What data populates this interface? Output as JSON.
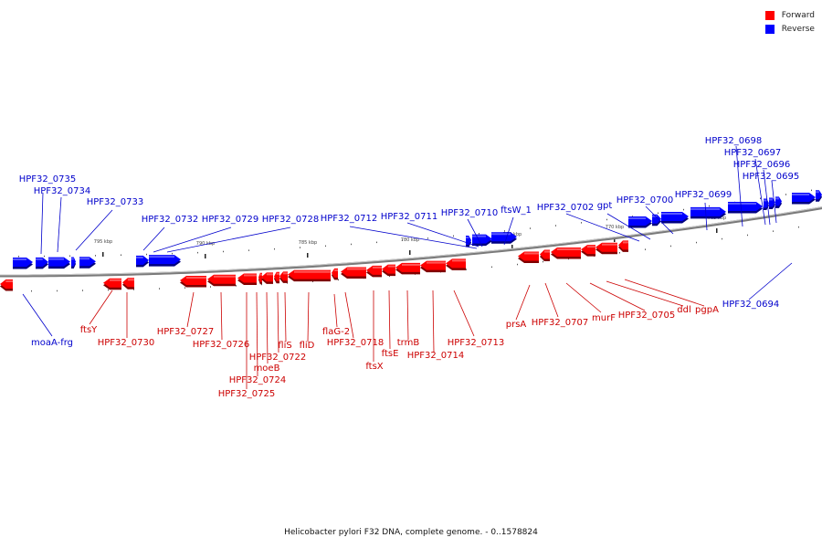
{
  "legend": {
    "forward_label": "Forward",
    "reverse_label": "Reverse",
    "forward_color": "#ff0000",
    "reverse_color": "#0000ff"
  },
  "caption": "Helicobacter pylori F32 DNA, complete genome. - 0..1578824",
  "colors": {
    "forward_label": "#cc0000",
    "reverse_label": "#0000cc",
    "backbone": "#7a7a7a"
  },
  "ticks": [
    "795 kbp",
    "790 kbp",
    "785 kbp",
    "780 kbp",
    "775 kbp",
    "770 kbp",
    "765 kbp"
  ],
  "reverse_genes": [
    "HPF32_0735",
    "HPF32_0734",
    "HPF32_0733",
    "HPF32_0732",
    "HPF32_0729",
    "HPF32_0728",
    "HPF32_0712",
    "HPF32_0711",
    "HPF32_0710",
    "ftsW_1",
    "HPF32_0702",
    "gpt",
    "HPF32_0700",
    "HPF32_0699",
    "HPF32_0698",
    "HPF32_0697",
    "HPF32_0696",
    "HPF32_0695",
    "HPF32_0694",
    "moaA-frg"
  ],
  "forward_genes": [
    "ftsY",
    "HPF32_0730",
    "HPF32_0727",
    "HPF32_0726",
    "HPF32_0725",
    "HPF32_0724",
    "moeB",
    "HPF32_0722",
    "fliS",
    "fliD",
    "flaG-2",
    "HPF32_0718",
    "ftsX",
    "ftsE",
    "trmB",
    "HPF32_0714",
    "HPF32_0713",
    "prsA",
    "HPF32_0707",
    "murF",
    "HPF32_0705",
    "ddl",
    "pgpA"
  ]
}
